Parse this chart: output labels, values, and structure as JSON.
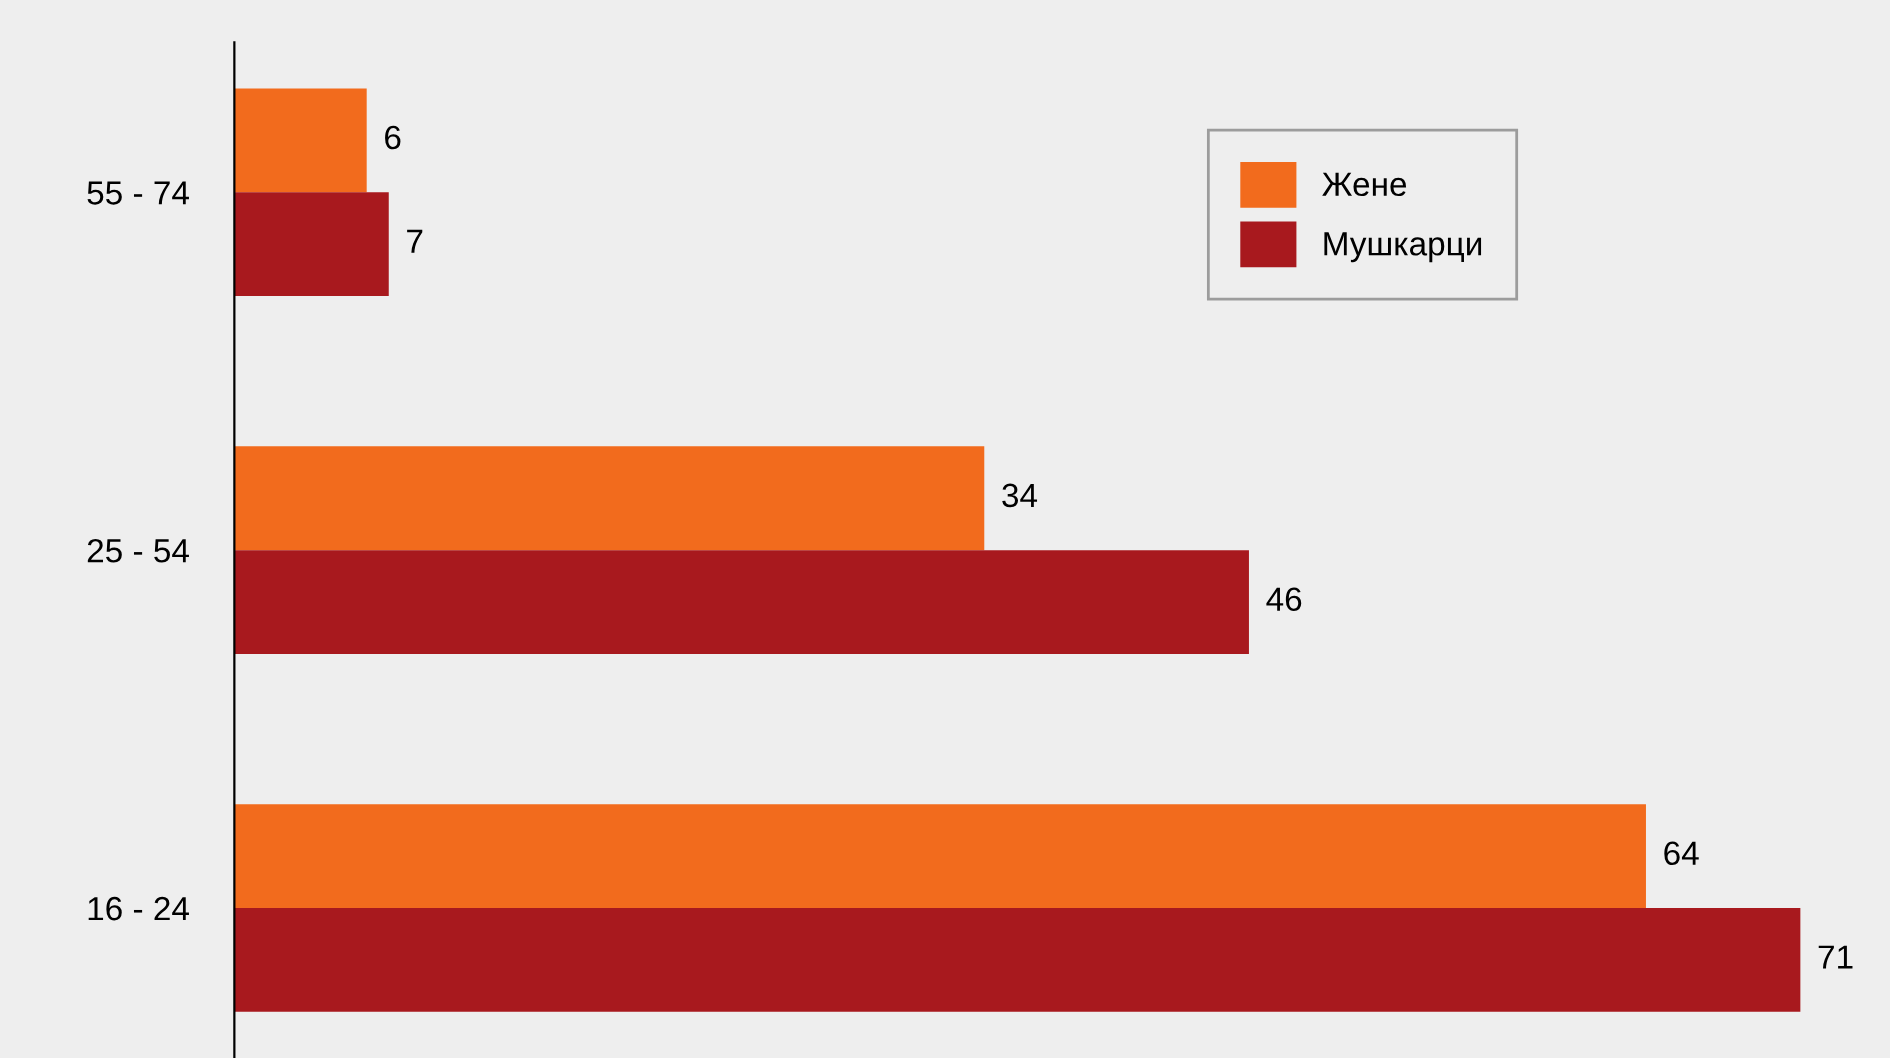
{
  "chart_data": {
    "type": "bar",
    "orientation": "horizontal",
    "categories": [
      "55 - 74",
      "25 - 54",
      "16 - 24"
    ],
    "series": [
      {
        "name": "Жене",
        "color": "#f26b1d",
        "values": [
          6,
          34,
          64
        ]
      },
      {
        "name": "Мушкарци",
        "color": "#a8191e",
        "values": [
          7,
          46,
          71
        ]
      }
    ],
    "data_labels": true,
    "legend": "top right",
    "grid": false,
    "tick_labels": "y"
  }
}
